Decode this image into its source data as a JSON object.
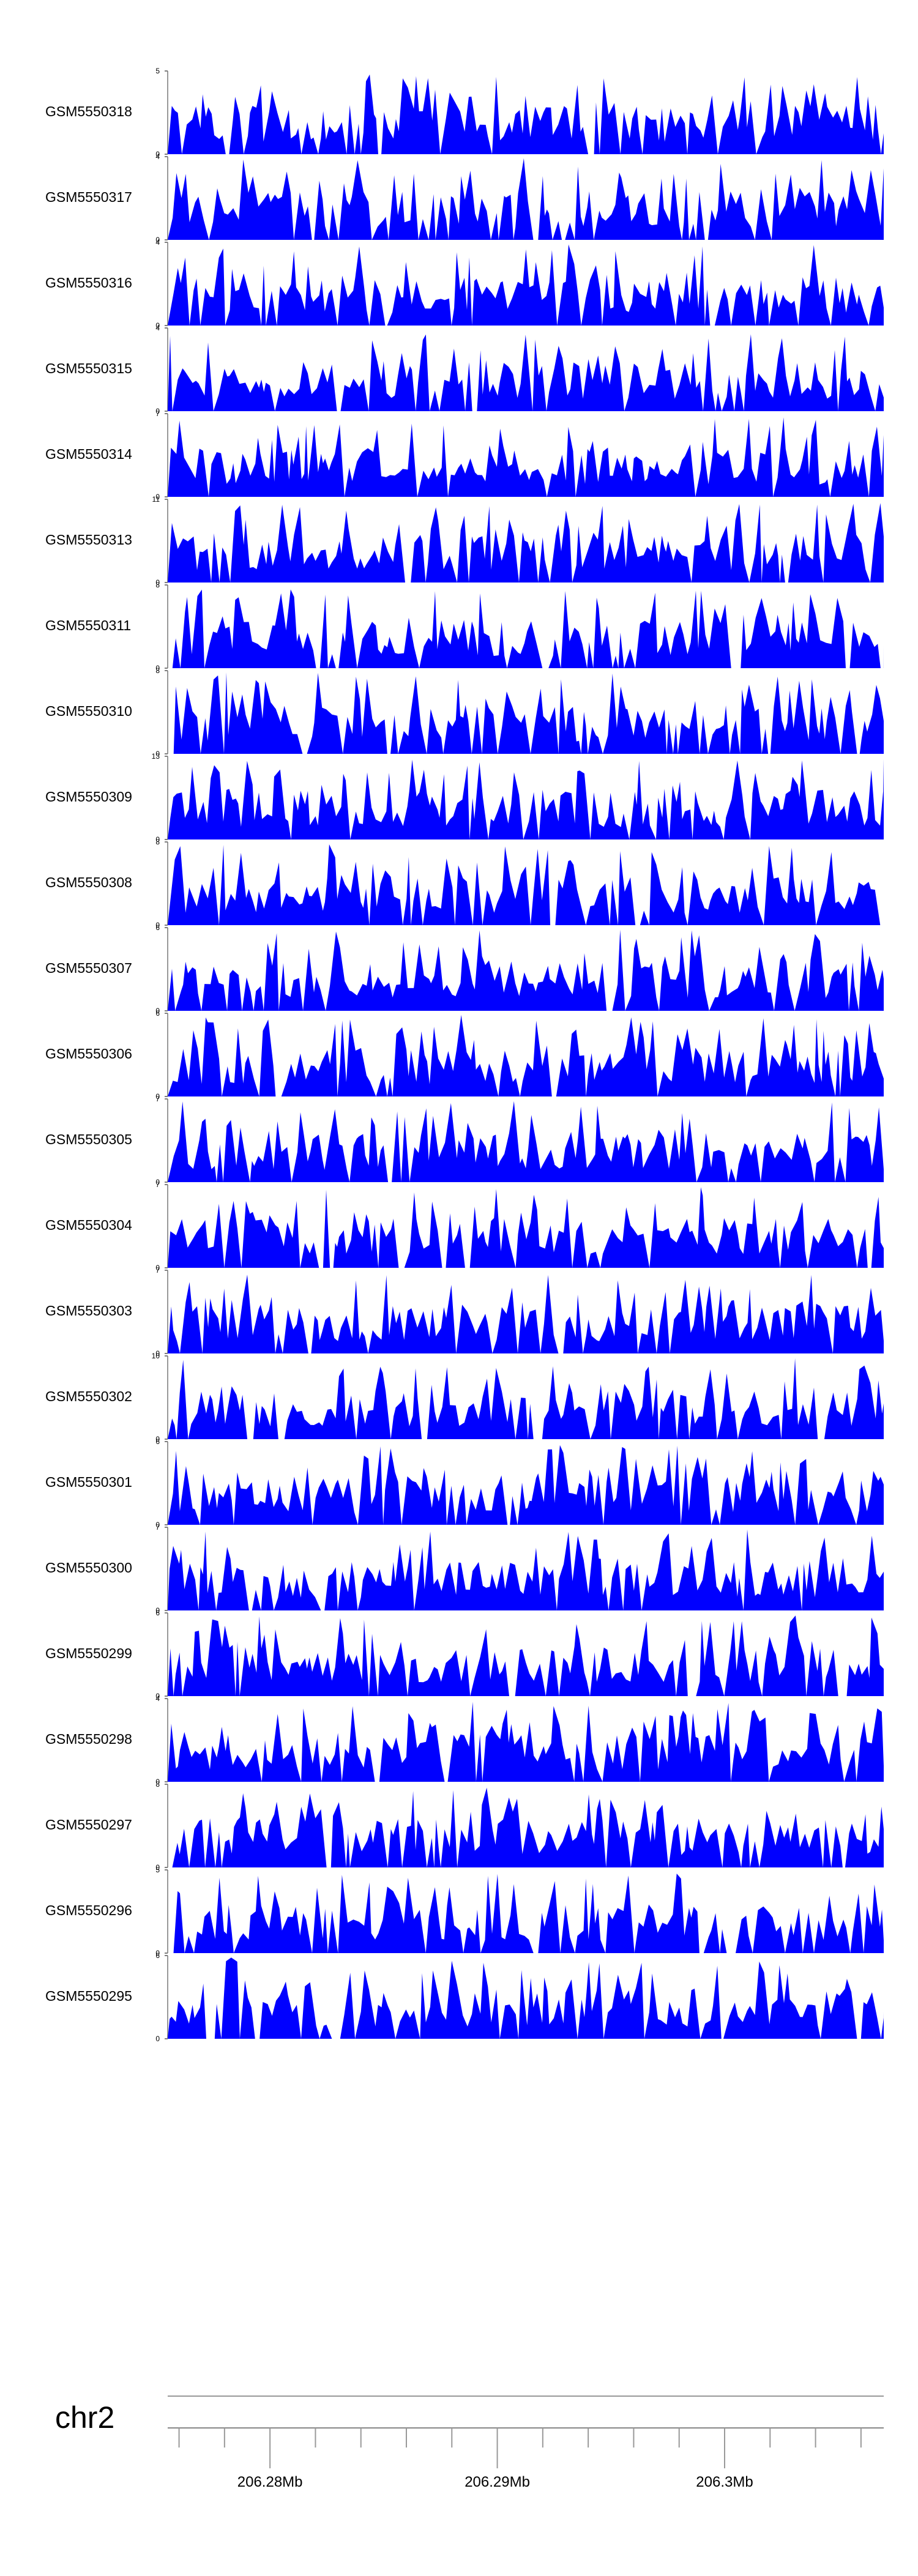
{
  "chart_data": {
    "type": "area",
    "track_color": "#0000ff",
    "chromosome": "chr2",
    "tracks": [
      {
        "label": "GSM5550318",
        "ymax": "5",
        "ymin": "0"
      },
      {
        "label": "GSM5550317",
        "ymax": "4",
        "ymin": "0"
      },
      {
        "label": "GSM5550316",
        "ymax": "4",
        "ymin": "0"
      },
      {
        "label": "GSM5550315",
        "ymax": "4",
        "ymin": "0"
      },
      {
        "label": "GSM5550314",
        "ymax": "7",
        "ymin": "0"
      },
      {
        "label": "GSM5550313",
        "ymax": "11",
        "ymin": "0"
      },
      {
        "label": "GSM5550311",
        "ymax": "8",
        "ymin": "0"
      },
      {
        "label": "GSM5550310",
        "ymax": "8",
        "ymin": "0"
      },
      {
        "label": "GSM5550309",
        "ymax": "13",
        "ymin": "0"
      },
      {
        "label": "GSM5550308",
        "ymax": "8",
        "ymin": "0"
      },
      {
        "label": "GSM5550307",
        "ymax": "6",
        "ymin": "0"
      },
      {
        "label": "GSM5550306",
        "ymax": "6",
        "ymin": "0"
      },
      {
        "label": "GSM5550305",
        "ymax": "7",
        "ymin": "0"
      },
      {
        "label": "GSM5550304",
        "ymax": "7",
        "ymin": "0"
      },
      {
        "label": "GSM5550303",
        "ymax": "7",
        "ymin": "0"
      },
      {
        "label": "GSM5550302",
        "ymax": "10",
        "ymin": "0"
      },
      {
        "label": "GSM5550301",
        "ymax": "6",
        "ymin": "0"
      },
      {
        "label": "GSM5550300",
        "ymax": "7",
        "ymin": "0"
      },
      {
        "label": "GSM5550299",
        "ymax": "6",
        "ymin": "0"
      },
      {
        "label": "GSM5550298",
        "ymax": "4",
        "ymin": "0"
      },
      {
        "label": "GSM5550297",
        "ymax": "8",
        "ymin": "0"
      },
      {
        "label": "GSM5550296",
        "ymax": "5",
        "ymin": "0"
      },
      {
        "label": "GSM5550295",
        "ymax": "6",
        "ymin": "0"
      }
    ],
    "x_axis": {
      "major_ticks": [
        {
          "pos_mb": 206.28,
          "label": "206.28Mb"
        },
        {
          "pos_mb": 206.29,
          "label": "206.29Mb"
        },
        {
          "pos_mb": 206.3,
          "label": "206.3Mb"
        }
      ],
      "minor_tick_step_mb": 0.002,
      "range_mb": [
        206.2755,
        206.307
      ]
    }
  }
}
